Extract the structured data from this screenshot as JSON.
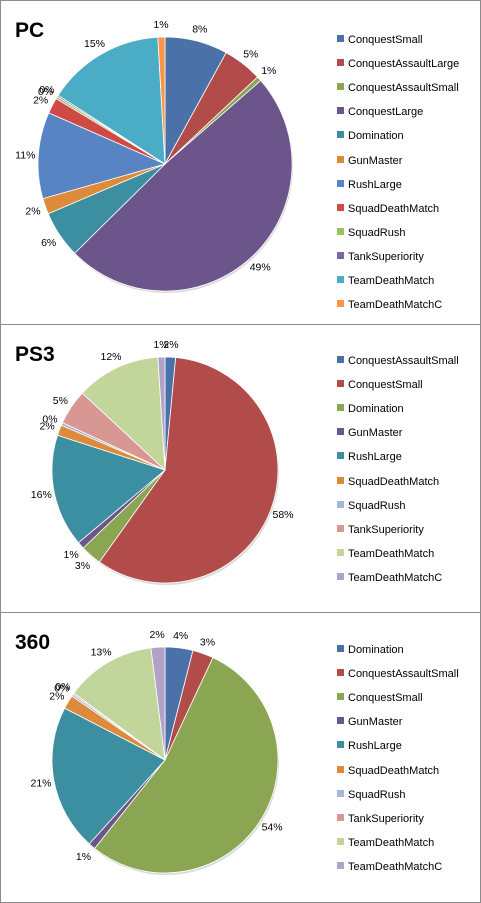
{
  "chart_data": [
    {
      "type": "pie",
      "title": "PC",
      "legend_position": "right",
      "slices": [
        {
          "name": "ConquestSmall",
          "value": 8,
          "label": "8%",
          "color": "#4a72a8"
        },
        {
          "name": "ConquestAssaultLarge",
          "value": 5,
          "label": "5%",
          "color": "#b24c4a"
        },
        {
          "name": "ConquestAssaultSmall",
          "value": 0.6,
          "label": "1%",
          "color": "#8aa653"
        },
        {
          "name": "ConquestLarge",
          "value": 49,
          "label": "49%",
          "color": "#6c558a"
        },
        {
          "name": "Domination",
          "value": 6,
          "label": "6%",
          "color": "#3b8fa0"
        },
        {
          "name": "GunMaster",
          "value": 2,
          "label": "2%",
          "color": "#de8a3b"
        },
        {
          "name": "RushLarge",
          "value": 11,
          "label": "11%",
          "color": "#5884c4"
        },
        {
          "name": "SquadDeathMatch",
          "value": 2,
          "label": "2%",
          "color": "#cf4a47"
        },
        {
          "name": "SquadRush",
          "value": 0.3,
          "label": "0%",
          "color": "#9bc25a"
        },
        {
          "name": "TankSuperiority",
          "value": 0.2,
          "label": "0%",
          "color": "#7f66a0"
        },
        {
          "name": "TeamDeathMatch",
          "value": 15,
          "label": "15%",
          "color": "#4bacc6"
        },
        {
          "name": "TeamDeathMatchC",
          "value": 0.9,
          "label": "1%",
          "color": "#f79646"
        }
      ]
    },
    {
      "type": "pie",
      "title": "PS3",
      "legend_position": "right",
      "slices": [
        {
          "name": "ConquestAssaultSmall",
          "value": 1.5,
          "label": "2%",
          "color": "#4a72a8"
        },
        {
          "name": "ConquestSmall",
          "value": 58,
          "label": "58%",
          "color": "#b24c4a"
        },
        {
          "name": "Domination",
          "value": 3,
          "label": "3%",
          "color": "#8aa653"
        },
        {
          "name": "GunMaster",
          "value": 1,
          "label": "1%",
          "color": "#6c558a"
        },
        {
          "name": "RushLarge",
          "value": 16,
          "label": "16%",
          "color": "#3b8fa0"
        },
        {
          "name": "SquadDeathMatch",
          "value": 1.5,
          "label": "2%",
          "color": "#de8a3b"
        },
        {
          "name": "SquadRush",
          "value": 0.4,
          "label": "0%",
          "color": "#a5b8da"
        },
        {
          "name": "TankSuperiority",
          "value": 5,
          "label": "5%",
          "color": "#d99794"
        },
        {
          "name": "TeamDeathMatch",
          "value": 12,
          "label": "12%",
          "color": "#c2d69b"
        },
        {
          "name": "TeamDeathMatchC",
          "value": 1,
          "label": "1%",
          "color": "#b3a2c7"
        }
      ]
    },
    {
      "type": "pie",
      "title": "360",
      "legend_position": "right",
      "slices": [
        {
          "name": "Domination",
          "value": 4,
          "label": "4%",
          "color": "#4a72a8"
        },
        {
          "name": "ConquestAssaultSmall",
          "value": 3,
          "label": "3%",
          "color": "#b24c4a"
        },
        {
          "name": "ConquestSmall",
          "value": 54,
          "label": "54%",
          "color": "#8aa653"
        },
        {
          "name": "GunMaster",
          "value": 1,
          "label": "1%",
          "color": "#6c558a"
        },
        {
          "name": "RushLarge",
          "value": 21,
          "label": "21%",
          "color": "#3b8fa0"
        },
        {
          "name": "SquadDeathMatch",
          "value": 2,
          "label": "2%",
          "color": "#de8a3b"
        },
        {
          "name": "SquadRush",
          "value": 0.3,
          "label": "0%",
          "color": "#a5b8da"
        },
        {
          "name": "TankSuperiority",
          "value": 0.2,
          "label": "0%",
          "color": "#d99794"
        },
        {
          "name": "TeamDeathMatch",
          "value": 13,
          "label": "13%",
          "color": "#c2d69b"
        },
        {
          "name": "TeamDeathMatchC",
          "value": 2,
          "label": "2%",
          "color": "#b3a2c7"
        }
      ]
    }
  ]
}
